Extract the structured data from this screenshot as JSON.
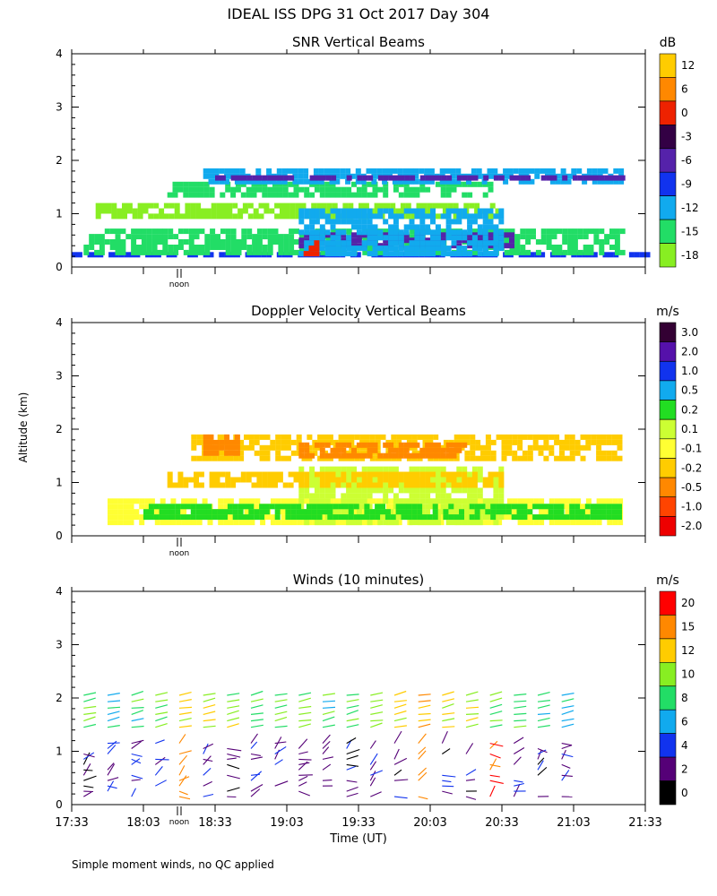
{
  "figure": {
    "title": "IDEAL ISS DPG  31 Oct 2017 Day 304",
    "footnote": "Simple moment winds, no QC applied",
    "ylabel": "Altitude (km)",
    "xlabel": "Time (UT)",
    "noon_label": "noon"
  },
  "chart_data": [
    {
      "type": "heatmap",
      "title": "SNR Vertical Beams",
      "ylabel": "Altitude (km)",
      "xlim": [
        0,
        240
      ],
      "ylim": [
        0,
        4
      ],
      "y_ticks": [
        "0",
        "1",
        "2",
        "3",
        "4"
      ],
      "colorbar": {
        "unit": "dB",
        "labels": [
          "12",
          "6",
          "0",
          "-3",
          "-6",
          "-9",
          "-12",
          "-15",
          "-18"
        ],
        "colors": [
          "#ffcc00",
          "#ff8800",
          "#ee2200",
          "#330044",
          "#5522aa",
          "#1133ee",
          "#11aaee",
          "#22dd66",
          "#88ee22"
        ]
      },
      "layers": [
        {
          "t_start": 0,
          "t_end": 240,
          "y_bottom": 0.18,
          "y_top": 0.22,
          "value": "-9"
        },
        {
          "t_start": 5,
          "t_end": 230,
          "y_bottom": 0.22,
          "y_top": 0.7,
          "value": "-15"
        },
        {
          "t_start": 95,
          "t_end": 185,
          "y_bottom": 0.35,
          "y_top": 0.55,
          "value": "-6"
        },
        {
          "t_start": 10,
          "t_end": 180,
          "y_bottom": 0.9,
          "y_top": 1.2,
          "value": "-18"
        },
        {
          "t_start": 40,
          "t_end": 175,
          "y_bottom": 1.3,
          "y_top": 1.6,
          "value": "-15"
        },
        {
          "t_start": 55,
          "t_end": 230,
          "y_bottom": 1.55,
          "y_top": 1.8,
          "value": "-12"
        },
        {
          "t_start": 60,
          "t_end": 230,
          "y_bottom": 1.62,
          "y_top": 1.7,
          "value": "-6"
        },
        {
          "t_start": 95,
          "t_end": 180,
          "y_bottom": 0.2,
          "y_top": 1.0,
          "value": "-12"
        },
        {
          "t_start": 97,
          "t_end": 103,
          "y_bottom": 0.2,
          "y_top": 0.45,
          "value": "0"
        }
      ]
    },
    {
      "type": "heatmap",
      "title": "Doppler Velocity Vertical Beams",
      "ylabel": "Altitude (km)",
      "xlim": [
        0,
        240
      ],
      "ylim": [
        0,
        4
      ],
      "y_ticks": [
        "0",
        "1",
        "2",
        "3",
        "4"
      ],
      "colorbar": {
        "unit": "m/s",
        "labels": [
          "3.0",
          "2.0",
          "1.0",
          "0.5",
          "0.2",
          "0.1",
          "-0.1",
          "-0.2",
          "-0.5",
          "-1.0",
          "-2.0"
        ],
        "colors": [
          "#330033",
          "#5511aa",
          "#1133ee",
          "#11aaee",
          "#22dd22",
          "#ccff33",
          "#ffff33",
          "#ffcc00",
          "#ff8800",
          "#ff4400",
          "#ee0000"
        ]
      },
      "layers": [
        {
          "t_start": 15,
          "t_end": 230,
          "y_bottom": 0.2,
          "y_top": 0.7,
          "value": "-0.1"
        },
        {
          "t_start": 95,
          "t_end": 180,
          "y_bottom": 0.2,
          "y_top": 1.3,
          "value": "0.1"
        },
        {
          "t_start": 40,
          "t_end": 180,
          "y_bottom": 0.9,
          "y_top": 1.2,
          "value": "-0.2"
        },
        {
          "t_start": 50,
          "t_end": 230,
          "y_bottom": 1.4,
          "y_top": 1.85,
          "value": "-0.2"
        },
        {
          "t_start": 55,
          "t_end": 70,
          "y_bottom": 1.5,
          "y_top": 1.85,
          "value": "-0.5"
        },
        {
          "t_start": 95,
          "t_end": 165,
          "y_bottom": 1.45,
          "y_top": 1.75,
          "value": "-0.5"
        },
        {
          "t_start": 30,
          "t_end": 230,
          "y_bottom": 0.3,
          "y_top": 0.6,
          "value": "0.2"
        }
      ]
    },
    {
      "type": "scatter",
      "title": "Winds (10 minutes)",
      "ylabel": "Altitude (km)",
      "xlabel": "Time (UT)",
      "xlim": [
        0,
        240
      ],
      "ylim": [
        0,
        4
      ],
      "x_ticks": [
        "17:33",
        "18:03",
        "18:33",
        "19:03",
        "19:33",
        "20:03",
        "20:33",
        "21:03",
        "21:33"
      ],
      "y_ticks": [
        "0",
        "1",
        "2",
        "3",
        "4"
      ],
      "colorbar": {
        "unit": "m/s",
        "labels": [
          "20",
          "15",
          "12",
          "10",
          "8",
          "6",
          "4",
          "2",
          "0"
        ],
        "colors": [
          "#ff0000",
          "#ff8800",
          "#ffcc00",
          "#88ee22",
          "#22dd66",
          "#11aaee",
          "#1133ee",
          "#550077",
          "#000000"
        ]
      },
      "profile_times_min": [
        5,
        15,
        25,
        35,
        45,
        55,
        65,
        75,
        85,
        95,
        105,
        115,
        125,
        135,
        145,
        155,
        165,
        175,
        185,
        195,
        205
      ],
      "upper_wind_speed_ms": [
        10,
        8,
        9,
        11,
        13,
        12,
        11,
        10,
        10,
        10,
        9,
        9,
        10,
        12,
        14,
        12,
        11,
        10,
        9,
        8,
        8
      ],
      "lower_wind_speed_ms": [
        3,
        3,
        4,
        5,
        18,
        3,
        3,
        4,
        4,
        4,
        3,
        3,
        4,
        3,
        18,
        3,
        3,
        20,
        4,
        3,
        3
      ]
    }
  ]
}
